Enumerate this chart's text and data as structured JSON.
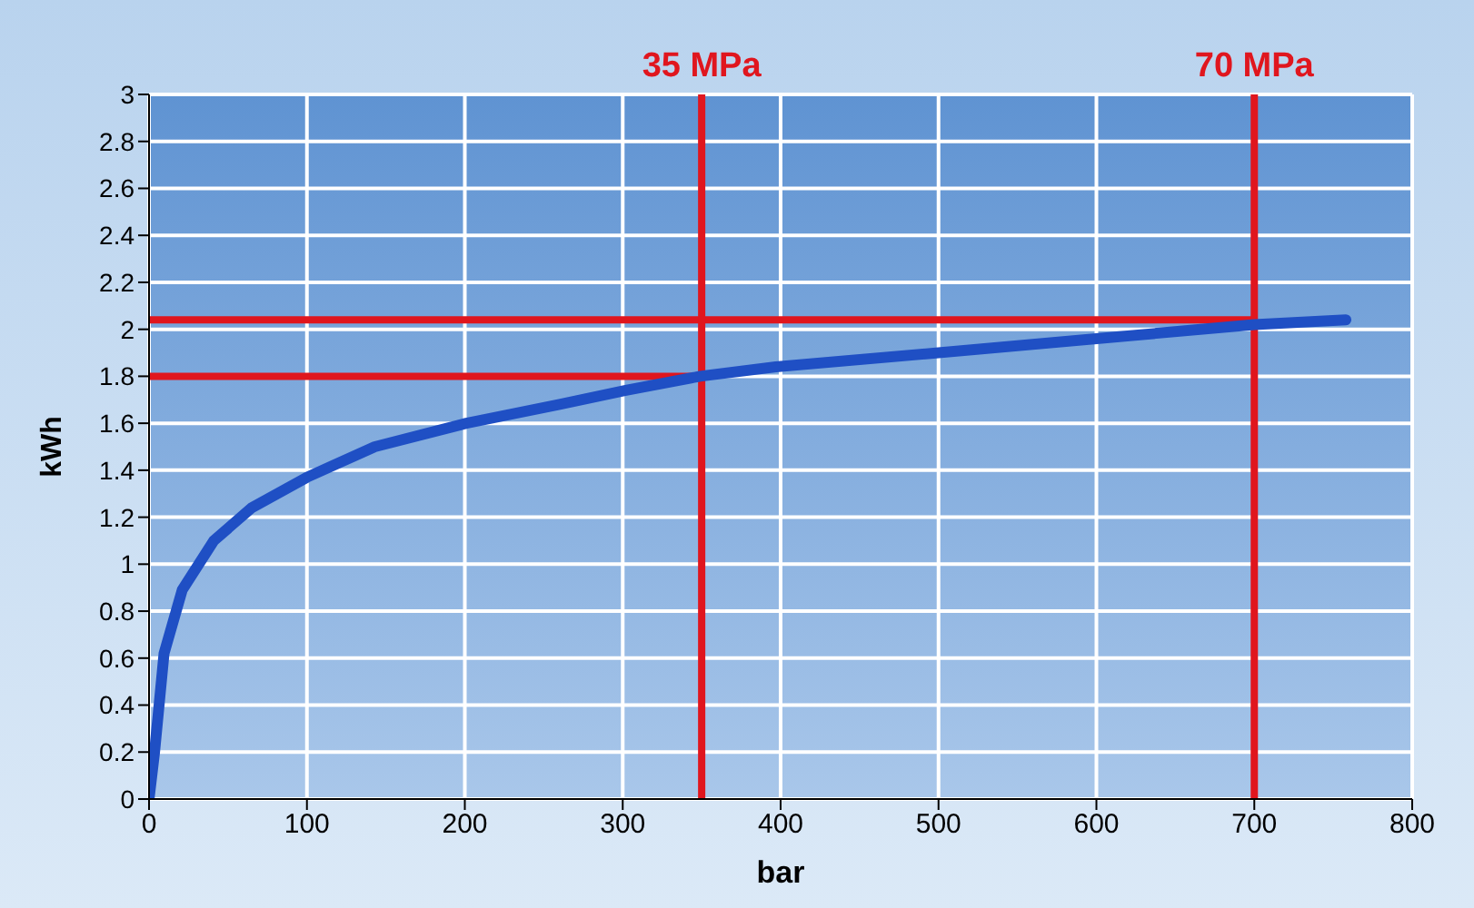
{
  "chart_data": {
    "type": "line",
    "xlabel": "bar",
    "ylabel": "kWh",
    "x": [
      0,
      3.5,
      9.5,
      21,
      41,
      65,
      100,
      143,
      201,
      260,
      302,
      349,
      397,
      500,
      600,
      700,
      758
    ],
    "series": [
      {
        "color": "#1f4fc4",
        "values": [
          0,
          0.2,
          0.62,
          0.89,
          1.1,
          1.24,
          1.37,
          1.5,
          1.6,
          1.68,
          1.74,
          1.8,
          1.84,
          1.9,
          1.96,
          2.02,
          2.04
        ]
      }
    ],
    "xlim": [
      0,
      800
    ],
    "xticks": [
      0,
      100,
      200,
      300,
      400,
      500,
      600,
      700,
      800
    ],
    "ylim": [
      0,
      3
    ],
    "yticks": [
      0,
      0.2,
      0.4,
      0.6,
      0.8,
      1,
      1.2,
      1.4,
      1.6,
      1.8,
      2,
      2.2,
      2.4,
      2.6,
      2.8,
      3
    ],
    "grid": true,
    "marker": "none",
    "line_style": "solid",
    "ref_lines": [
      {
        "axis": "x",
        "value": 350,
        "label": "35 MPa",
        "color": "#e0161e"
      },
      {
        "axis": "x",
        "value": 700,
        "label": "70 MPa",
        "color": "#e0161e"
      },
      {
        "axis": "y",
        "value": 1.8,
        "color": "#e0161e"
      },
      {
        "axis": "y",
        "value": 2.04,
        "color": "#e0161e"
      }
    ]
  }
}
